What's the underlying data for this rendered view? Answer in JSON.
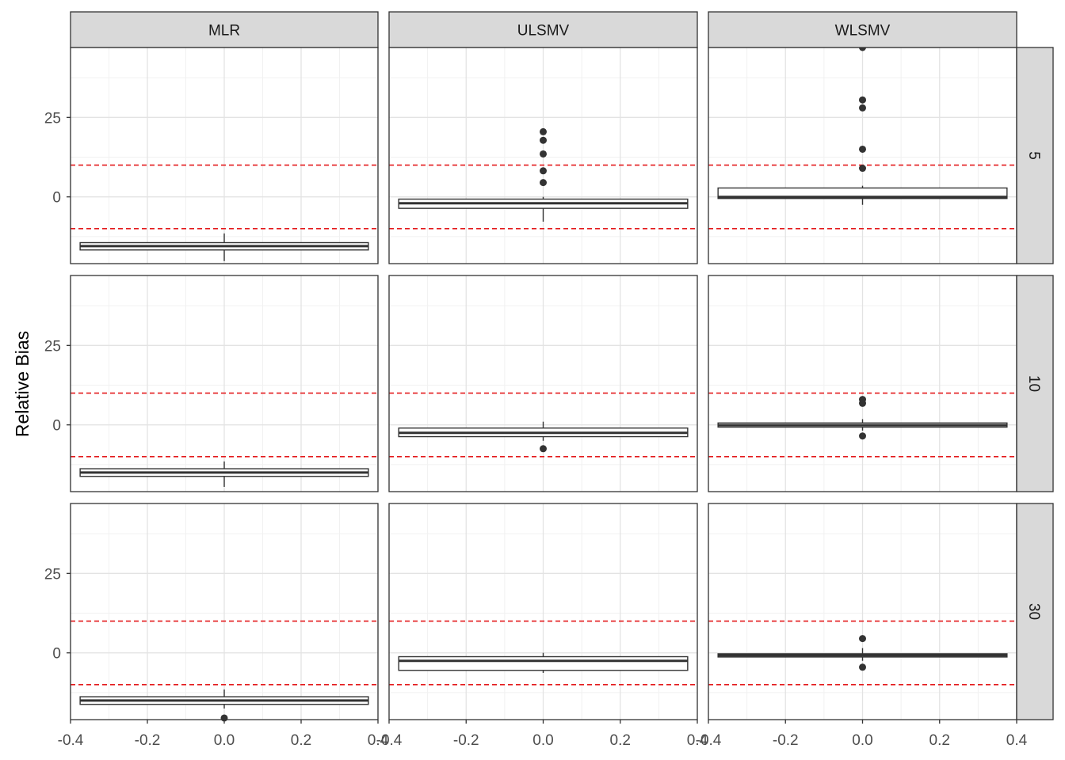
{
  "chart_data": {
    "type": "boxplot",
    "facet_columns": [
      "MLR",
      "ULSMV",
      "WLSMV"
    ],
    "facet_rows": [
      "5",
      "10",
      "30"
    ],
    "ylabel": "Relative Bias",
    "xlabel": "",
    "xlim": [
      -0.4,
      0.4
    ],
    "xticks": [
      -0.4,
      -0.2,
      0.0,
      0.2,
      0.4
    ],
    "xtick_labels": [
      "-0.4",
      "-0.2",
      "0.0",
      "0.2",
      "0.4"
    ],
    "ylim": [
      -21,
      47
    ],
    "yticks": [
      0,
      25
    ],
    "ytick_labels": [
      "0",
      "25"
    ],
    "y_minor_ticks": [
      -12.5,
      12.5,
      37.5
    ],
    "reference_lines": [
      10,
      -10
    ],
    "reference_line_color": "#e41a1c",
    "grid": true,
    "box_x_range": [
      -0.375,
      0.375
    ],
    "box_center_x": 0.0,
    "panels": [
      {
        "row": "5",
        "column": "MLR",
        "q1": -16.7,
        "median": -15.5,
        "q3": -14.4,
        "whisker_low": -20.2,
        "whisker_high": -11.5,
        "outliers": []
      },
      {
        "row": "5",
        "column": "ULSMV",
        "q1": -3.6,
        "median": -2.0,
        "q3": -0.7,
        "whisker_low": -7.8,
        "whisker_high": 0.0,
        "outliers": [
          4.5,
          8.2,
          13.5,
          17.8,
          20.5
        ]
      },
      {
        "row": "5",
        "column": "WLSMV",
        "q1": -0.5,
        "median": 0.0,
        "q3": 2.8,
        "whisker_low": -2.5,
        "whisker_high": 3.5,
        "outliers": [
          9.0,
          15.0,
          28.0,
          30.5,
          47.0
        ]
      },
      {
        "row": "10",
        "column": "MLR",
        "q1": -16.2,
        "median": -15.0,
        "q3": -13.8,
        "whisker_low": -19.5,
        "whisker_high": -11.5,
        "outliers": []
      },
      {
        "row": "10",
        "column": "ULSMV",
        "q1": -3.7,
        "median": -2.5,
        "q3": -1.0,
        "whisker_low": -5.0,
        "whisker_high": 1.0,
        "outliers": [
          -7.5
        ]
      },
      {
        "row": "10",
        "column": "WLSMV",
        "q1": -0.7,
        "median": -0.1,
        "q3": 0.6,
        "whisker_low": -1.8,
        "whisker_high": 1.8,
        "outliers": [
          -3.5,
          6.8,
          8.0
        ]
      },
      {
        "row": "30",
        "column": "MLR",
        "q1": -16.2,
        "median": -15.0,
        "q3": -13.8,
        "whisker_low": -17.5,
        "whisker_high": -11.5,
        "outliers": [
          -20.5
        ]
      },
      {
        "row": "30",
        "column": "ULSMV",
        "q1": -5.5,
        "median": -2.5,
        "q3": -1.2,
        "whisker_low": -6.3,
        "whisker_high": 0.0,
        "outliers": []
      },
      {
        "row": "30",
        "column": "WLSMV",
        "q1": -1.3,
        "median": -0.8,
        "q3": -0.3,
        "whisker_low": -2.5,
        "whisker_high": 1.5,
        "outliers": [
          -4.5,
          4.5
        ]
      }
    ]
  }
}
